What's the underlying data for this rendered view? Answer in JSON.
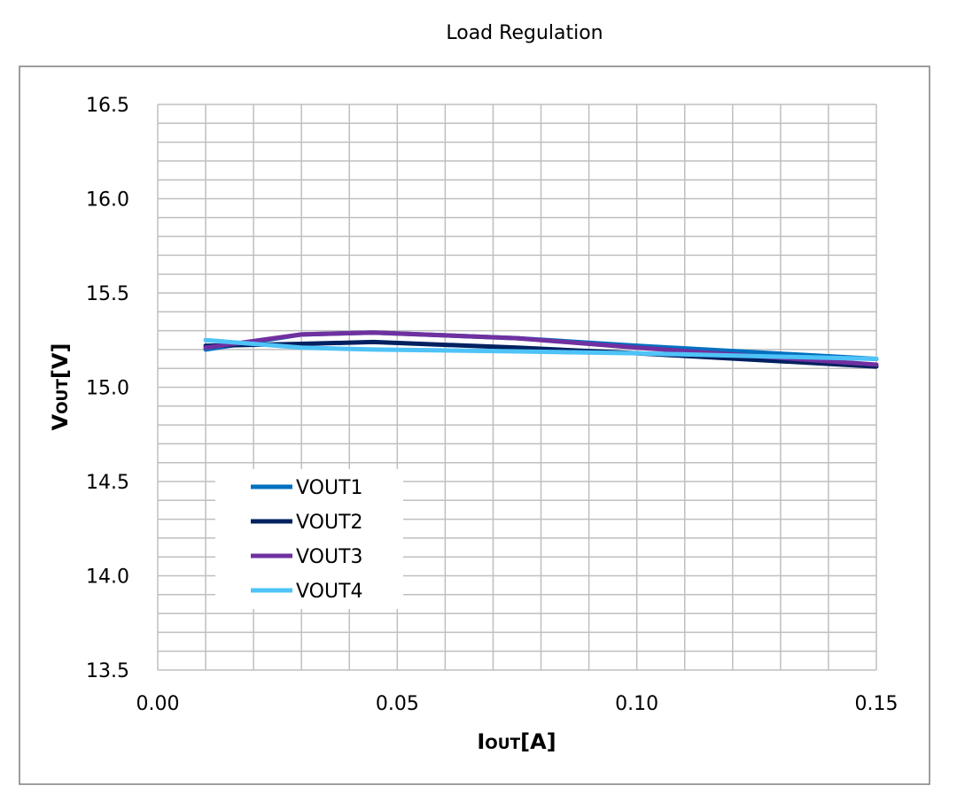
{
  "chart_data": {
    "type": "line",
    "title": "Load Regulation",
    "xlabel_main": "I",
    "xlabel_sub": "OUT",
    "xlabel_unit": "[A]",
    "ylabel_main": "V",
    "ylabel_sub": "OUT",
    "ylabel_unit": "[V]",
    "xlim": [
      0,
      0.15
    ],
    "ylim": [
      13.5,
      16.5
    ],
    "x_ticks": [
      "0.00",
      "0.05",
      "0.10",
      "0.15"
    ],
    "x_tick_values": [
      0,
      0.05,
      0.1,
      0.15
    ],
    "y_ticks": [
      "16.5",
      "16.0",
      "15.5",
      "15.0",
      "14.5",
      "14.0",
      "13.5"
    ],
    "y_tick_values": [
      16.5,
      16.0,
      15.5,
      15.0,
      14.5,
      14.0,
      13.5
    ],
    "x_minor_step": 0.01,
    "y_minor_step": 0.1,
    "grid": true,
    "legend_position": "lower-left",
    "x": [
      0.01,
      0.03,
      0.045,
      0.075,
      0.1,
      0.15
    ],
    "series": [
      {
        "name": "VOUT1",
        "color": "#0070C0",
        "values": [
          15.2,
          15.28,
          15.29,
          15.26,
          15.22,
          15.15
        ]
      },
      {
        "name": "VOUT2",
        "color": "#002060",
        "values": [
          15.22,
          15.23,
          15.24,
          15.21,
          15.18,
          15.11
        ]
      },
      {
        "name": "VOUT3",
        "color": "#7030A0",
        "values": [
          15.21,
          15.28,
          15.29,
          15.26,
          15.21,
          15.12
        ]
      },
      {
        "name": "VOUT4",
        "color": "#4FC3F7",
        "values": [
          15.25,
          15.21,
          15.2,
          15.19,
          15.18,
          15.15
        ]
      }
    ]
  }
}
